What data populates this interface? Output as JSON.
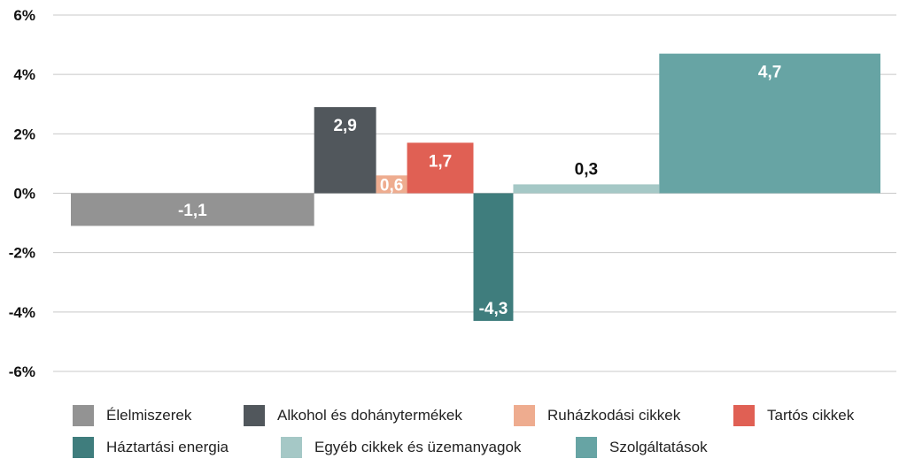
{
  "chart_data": {
    "type": "bar",
    "title": "",
    "xlabel": "",
    "ylabel": "",
    "ylim": [
      -6,
      6
    ],
    "y_ticks": [
      6,
      4,
      2,
      0,
      -2,
      -4,
      -6
    ],
    "y_tick_labels": [
      "6%",
      "4%",
      "2%",
      "0%",
      "-2%",
      "-4%",
      "-6%"
    ],
    "grid": true,
    "legend_position": "bottom",
    "categories": [
      "Élelmiszerek",
      "Alkohol és dohánytermékek",
      "Ruházkodási cikkek",
      "Tartós cikkek",
      "Háztartási energia",
      "Egyéb cikkek és üzemanyagok",
      "Szolgáltatások"
    ],
    "values": [
      -1.1,
      2.9,
      0.6,
      1.7,
      -4.3,
      0.3,
      4.7
    ],
    "data_labels": [
      "-1,1",
      "2,9",
      "0,6",
      "1,7",
      "-4,3",
      "0,3",
      "4,7"
    ],
    "colors": [
      "#939393",
      "#51575c",
      "#eeac8f",
      "#e06054",
      "#3f7d7d",
      "#a5c8c6",
      "#67a4a4"
    ],
    "label_colors": [
      "#ffffff",
      "#ffffff",
      "#ffffff",
      "#ffffff",
      "#ffffff",
      "#111111",
      "#ffffff"
    ],
    "weights": [
      27.5,
      7,
      3.5,
      7.5,
      4.5,
      16.5,
      25
    ]
  }
}
